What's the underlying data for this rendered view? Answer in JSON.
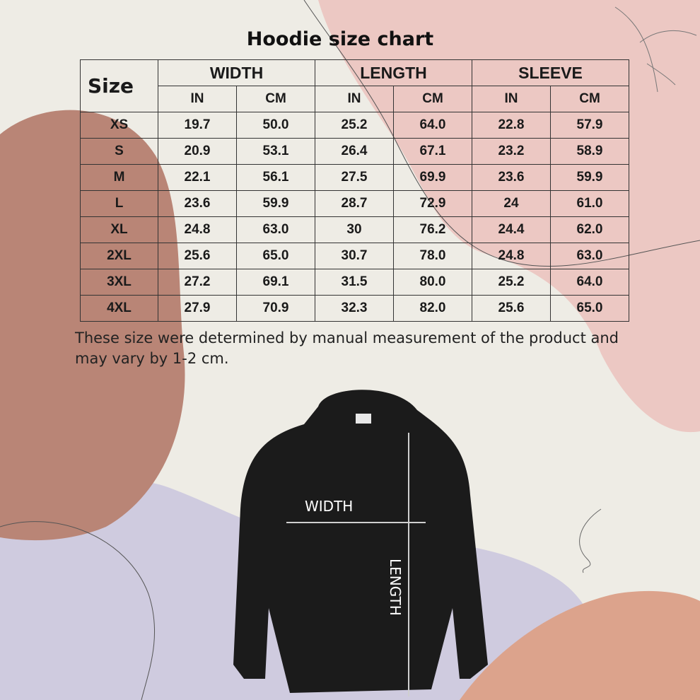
{
  "title": "Hoodie size chart",
  "table": {
    "size_header": "Size",
    "groups": [
      "WIDTH",
      "LENGTH",
      "SLEEVE"
    ],
    "units": [
      "IN",
      "CM",
      "IN",
      "CM",
      "IN",
      "CM"
    ],
    "rows": [
      [
        "XS",
        "19.7",
        "50.0",
        "25.2",
        "64.0",
        "22.8",
        "57.9"
      ],
      [
        "S",
        "20.9",
        "53.1",
        "26.4",
        "67.1",
        "23.2",
        "58.9"
      ],
      [
        "M",
        "22.1",
        "56.1",
        "27.5",
        "69.9",
        "23.6",
        "59.9"
      ],
      [
        "L",
        "23.6",
        "59.9",
        "28.7",
        "72.9",
        "24",
        "61.0"
      ],
      [
        "XL",
        "24.8",
        "63.0",
        "30",
        "76.2",
        "24.4",
        "62.0"
      ],
      [
        "2XL",
        "25.6",
        "65.0",
        "30.7",
        "78.0",
        "24.8",
        "63.0"
      ],
      [
        "3XL",
        "27.2",
        "69.1",
        "31.5",
        "80.0",
        "25.2",
        "64.0"
      ],
      [
        "4XL",
        "27.9",
        "70.9",
        "32.3",
        "82.0",
        "25.6",
        "65.0"
      ]
    ]
  },
  "note": "These size were determined by manual measurement of the product and may vary by 1-2 cm.",
  "diagram": {
    "width_label": "WIDTH",
    "length_label": "LENGTH"
  },
  "colors": {
    "background": "#eeece5",
    "brown_blob": "#b98576",
    "pink_blob": "#ecc8c3",
    "lavender_blob": "#cfcbdf",
    "salmon_blob": "#dca38c",
    "hoodie": "#1b1b1b"
  }
}
